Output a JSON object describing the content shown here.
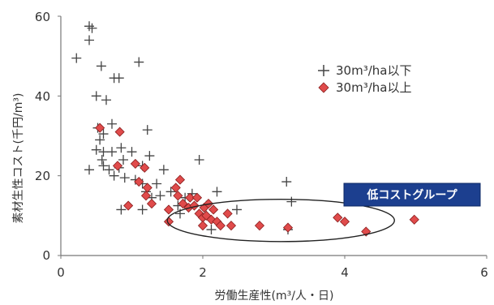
{
  "chart_data": {
    "type": "scatter",
    "xlabel": "労働生産性(m³/人・日)",
    "ylabel": "素材生性コスト(千円/m³)",
    "xlim": [
      0,
      6
    ],
    "ylim": [
      0,
      60
    ],
    "x_ticks": [
      "0",
      "2",
      "4",
      "6"
    ],
    "y_ticks": [
      "0",
      "20",
      "40",
      "60"
    ],
    "grid": false,
    "legend_position": "top-right",
    "series": [
      {
        "name": "30m³/ha以下",
        "marker": "plus",
        "color": "#444444",
        "points": [
          [
            0.22,
            49.5
          ],
          [
            0.4,
            57.5
          ],
          [
            0.44,
            57.0
          ],
          [
            0.4,
            54.0
          ],
          [
            0.5,
            40.0
          ],
          [
            0.57,
            47.5
          ],
          [
            0.64,
            39.0
          ],
          [
            0.75,
            44.5
          ],
          [
            0.82,
            44.5
          ],
          [
            1.1,
            48.5
          ],
          [
            0.52,
            32.0
          ],
          [
            0.55,
            29.0
          ],
          [
            0.6,
            30.5
          ],
          [
            0.72,
            33.0
          ],
          [
            0.5,
            26.5
          ],
          [
            0.6,
            26.0
          ],
          [
            0.72,
            26.0
          ],
          [
            0.58,
            24.0
          ],
          [
            0.85,
            27.0
          ],
          [
            0.4,
            21.5
          ],
          [
            0.6,
            22.5
          ],
          [
            0.68,
            21.5
          ],
          [
            0.82,
            22.0
          ],
          [
            0.88,
            24.0
          ],
          [
            1.0,
            26.0
          ],
          [
            0.75,
            20.0
          ],
          [
            0.9,
            19.5
          ],
          [
            1.15,
            22.5
          ],
          [
            1.25,
            25.0
          ],
          [
            1.22,
            31.5
          ],
          [
            1.05,
            19.0
          ],
          [
            1.15,
            18.0
          ],
          [
            1.2,
            16.0
          ],
          [
            1.28,
            14.5
          ],
          [
            1.35,
            18.0
          ],
          [
            1.4,
            15.0
          ],
          [
            1.45,
            21.5
          ],
          [
            1.55,
            16.0
          ],
          [
            1.65,
            12.5
          ],
          [
            1.75,
            14.5
          ],
          [
            1.85,
            15.5
          ],
          [
            1.95,
            24.0
          ],
          [
            2.05,
            12.5
          ],
          [
            2.2,
            16.0
          ],
          [
            2.48,
            11.5
          ],
          [
            0.85,
            11.5
          ],
          [
            1.15,
            11.5
          ],
          [
            1.68,
            10.5
          ],
          [
            2.12,
            6.5
          ],
          [
            3.18,
            18.5
          ],
          [
            3.25,
            13.5
          ],
          [
            3.2,
            6.5
          ]
        ]
      },
      {
        "name": "30m³/ha以上",
        "marker": "diamond",
        "color": "#e04b4b",
        "points": [
          [
            0.55,
            32.0
          ],
          [
            0.83,
            31.0
          ],
          [
            0.8,
            22.5
          ],
          [
            1.05,
            23.0
          ],
          [
            1.18,
            22.0
          ],
          [
            1.1,
            18.5
          ],
          [
            1.22,
            17.0
          ],
          [
            1.28,
            13.0
          ],
          [
            1.2,
            15.0
          ],
          [
            0.95,
            12.5
          ],
          [
            1.52,
            11.5
          ],
          [
            1.52,
            8.5
          ],
          [
            1.62,
            17.0
          ],
          [
            1.65,
            15.0
          ],
          [
            1.68,
            19.0
          ],
          [
            1.72,
            13.0
          ],
          [
            1.8,
            12.0
          ],
          [
            1.82,
            14.5
          ],
          [
            1.88,
            12.5
          ],
          [
            1.92,
            14.5
          ],
          [
            1.95,
            10.5
          ],
          [
            2.0,
            9.5
          ],
          [
            2.02,
            12.0
          ],
          [
            2.05,
            10.0
          ],
          [
            2.08,
            13.0
          ],
          [
            2.12,
            9.0
          ],
          [
            2.15,
            11.5
          ],
          [
            2.2,
            8.5
          ],
          [
            2.25,
            7.5
          ],
          [
            2.35,
            10.5
          ],
          [
            2.4,
            7.5
          ],
          [
            2.0,
            7.5
          ],
          [
            2.8,
            7.5
          ],
          [
            3.2,
            7.0
          ],
          [
            3.9,
            9.5
          ],
          [
            4.0,
            8.5
          ],
          [
            4.3,
            6.0
          ],
          [
            4.98,
            9.0
          ]
        ]
      }
    ],
    "annotation": {
      "label": "低コストグループ",
      "ellipse": {
        "cx": 3.1,
        "cy": 8.8,
        "rx": 1.6,
        "ry": 5.3
      }
    }
  },
  "colors": {
    "axis": "#777777",
    "plus_marker": "#444444",
    "diamond_fill": "#e04b4b",
    "diamond_stroke": "#8a1f1f",
    "callout_fill": "#1c3f8f",
    "callout_stroke": "#0d2a66"
  }
}
